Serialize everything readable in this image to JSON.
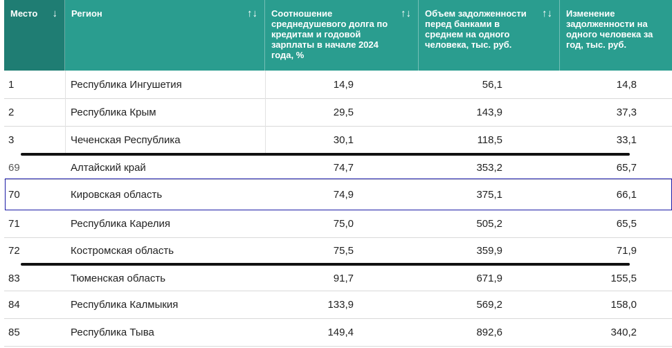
{
  "header": {
    "col_place": "Место",
    "col_place_sort": "↓",
    "col_region": "Регион",
    "col_region_sort": "↑↓",
    "col_ratio": "Соотношение среднедушевого долга по кредитам и годовой зарплаты в начале 2024 года, %",
    "col_ratio_sort": "↑↓",
    "col_debt": "Объем задолженности перед банками в среднем на одного человека, тыс. руб.",
    "col_debt_sort": "↑↓",
    "col_change": "Изменение задолженности на одного человека за год, тыс. руб."
  },
  "rows": [
    {
      "place": "1",
      "region": "Республика Ингушетия",
      "ratio": "14,9",
      "debt": "56,1",
      "change": "14,8"
    },
    {
      "place": "2",
      "region": "Республика Крым",
      "ratio": "29,5",
      "debt": "143,9",
      "change": "37,3"
    },
    {
      "place": "3",
      "region": "Чеченская Республика",
      "ratio": "30,1",
      "debt": "118,5",
      "change": "33,1"
    },
    {
      "place": "69",
      "region": "Алтайский край",
      "ratio": "74,7",
      "debt": "353,2",
      "change": "65,7"
    },
    {
      "place": "70",
      "region": "Кировская область",
      "ratio": "74,9",
      "debt": "375,1",
      "change": "66,1"
    },
    {
      "place": "71",
      "region": "Республика Карелия",
      "ratio": "75,0",
      "debt": "505,2",
      "change": "65,5"
    },
    {
      "place": "72",
      "region": "Костромская область",
      "ratio": "75,5",
      "debt": "359,9",
      "change": "71,9"
    },
    {
      "place": "83",
      "region": "Тюменская область",
      "ratio": "91,7",
      "debt": "671,9",
      "change": "155,5"
    },
    {
      "place": "84",
      "region": "Республика Калмыкия",
      "ratio": "133,9",
      "debt": "569,2",
      "change": "158,0"
    },
    {
      "place": "85",
      "region": "Республика Тыва",
      "ratio": "149,4",
      "debt": "892,6",
      "change": "340,2"
    }
  ]
}
